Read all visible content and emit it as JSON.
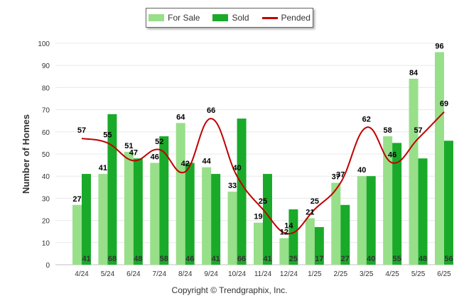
{
  "chart_data": {
    "type": "bar",
    "categories": [
      "4/24",
      "5/24",
      "6/24",
      "7/24",
      "8/24",
      "9/24",
      "10/24",
      "11/24",
      "12/24",
      "1/25",
      "2/25",
      "3/25",
      "4/25",
      "5/25",
      "6/25"
    ],
    "series": [
      {
        "name": "For Sale",
        "type": "bar",
        "color": "#98df8a",
        "values": [
          27,
          41,
          51,
          46,
          64,
          44,
          33,
          19,
          12,
          21,
          37,
          40,
          58,
          84,
          96
        ]
      },
      {
        "name": "Sold",
        "type": "bar",
        "color": "#1aaa2a",
        "values": [
          41,
          68,
          48,
          58,
          46,
          41,
          66,
          41,
          25,
          17,
          27,
          40,
          55,
          48,
          56
        ]
      },
      {
        "name": "Pended",
        "type": "line",
        "color": "#c00000",
        "values": [
          57,
          55,
          47,
          52,
          42,
          66,
          40,
          25,
          14,
          25,
          37,
          62,
          46,
          57,
          69
        ]
      }
    ],
    "ylabel": "Number of Homes",
    "xlabel": "",
    "ylim": [
      0,
      100
    ],
    "yticks": [
      0,
      10,
      20,
      30,
      40,
      50,
      60,
      70,
      80,
      90,
      100
    ],
    "grid": true,
    "legend": "top-center"
  },
  "footer": "Copyright © Trendgraphix, Inc."
}
